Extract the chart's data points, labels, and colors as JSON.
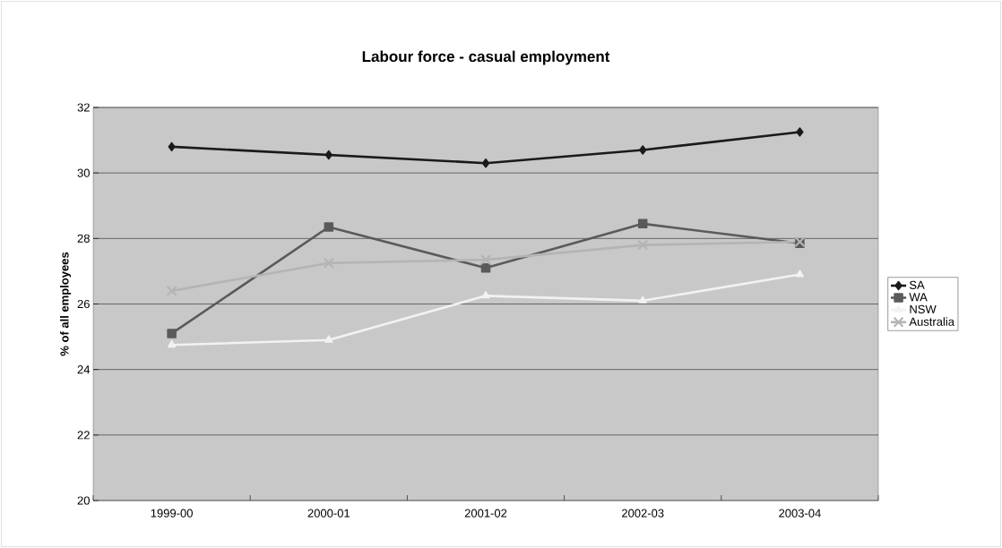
{
  "chart_data": {
    "type": "line",
    "title": "Labour force - casual employment",
    "ylabel": "% of all employees",
    "categories": [
      "1999-00",
      "2000-01",
      "2001-02",
      "2002-03",
      "2003-04"
    ],
    "series": [
      {
        "name": "SA",
        "color": "#1a1a1a",
        "marker": "diamond",
        "values": [
          30.8,
          30.55,
          30.3,
          30.7,
          31.25
        ]
      },
      {
        "name": "WA",
        "color": "#5a5a5a",
        "marker": "square",
        "values": [
          25.1,
          28.35,
          27.1,
          28.45,
          27.85
        ]
      },
      {
        "name": "NSW",
        "color": "#f2f2f2",
        "marker": "triangle",
        "values": [
          24.75,
          24.9,
          26.25,
          26.1,
          26.9
        ]
      },
      {
        "name": "Australia",
        "color": "#b4b4b4",
        "marker": "cross",
        "values": [
          26.4,
          27.25,
          27.35,
          27.8,
          27.9
        ]
      }
    ],
    "ylim": [
      20,
      32
    ],
    "yticks": [
      20,
      22,
      24,
      26,
      28,
      30,
      32
    ],
    "grid": "y",
    "legend": "right"
  }
}
